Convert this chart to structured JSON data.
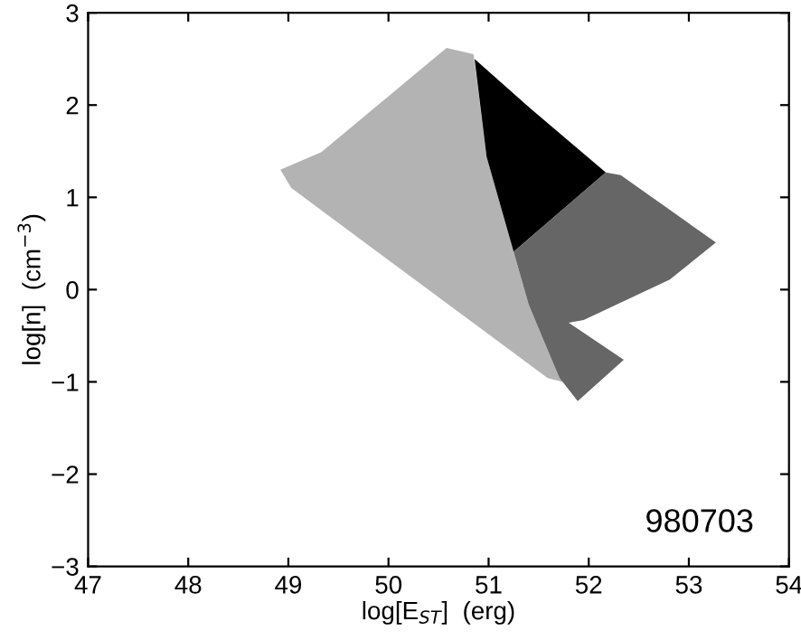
{
  "chart_data": {
    "type": "area",
    "xlabel": "log[E$_{ST}$]  (erg)",
    "ylabel": "log[n]  (cm$^{−3}$)",
    "annotations": [
      "980703"
    ],
    "xlim": [
      47,
      54
    ],
    "ylim": [
      -3,
      3
    ],
    "xticks": [
      47,
      48,
      49,
      50,
      51,
      52,
      53,
      54
    ],
    "yticks": [
      -3,
      -2,
      -1,
      0,
      1,
      2,
      3
    ],
    "grid": false,
    "legend": false,
    "series": [
      {
        "color": "#b3b3b3",
        "x": [
          48.92,
          49.33,
          50.58,
          50.85,
          50.98,
          51.25,
          51.4,
          51.74,
          51.59,
          49.03
        ],
        "values": [
          1.3,
          1.49,
          2.62,
          2.55,
          1.44,
          0.41,
          -0.16,
          -1.0,
          -0.96,
          1.1
        ]
      },
      {
        "color": "#000000",
        "x": [
          50.86,
          51.41,
          52.17,
          51.25,
          50.98
        ],
        "values": [
          2.5,
          1.97,
          1.27,
          0.41,
          1.44
        ]
      },
      {
        "color": "#666666",
        "x": [
          51.25,
          52.17,
          52.32,
          53.27,
          52.81,
          51.95,
          51.8,
          52.35,
          51.89,
          51.71,
          51.4
        ],
        "values": [
          0.41,
          1.27,
          1.24,
          0.51,
          0.11,
          -0.33,
          -0.36,
          -0.76,
          -1.21,
          -0.96,
          -0.16
        ]
      }
    ]
  }
}
